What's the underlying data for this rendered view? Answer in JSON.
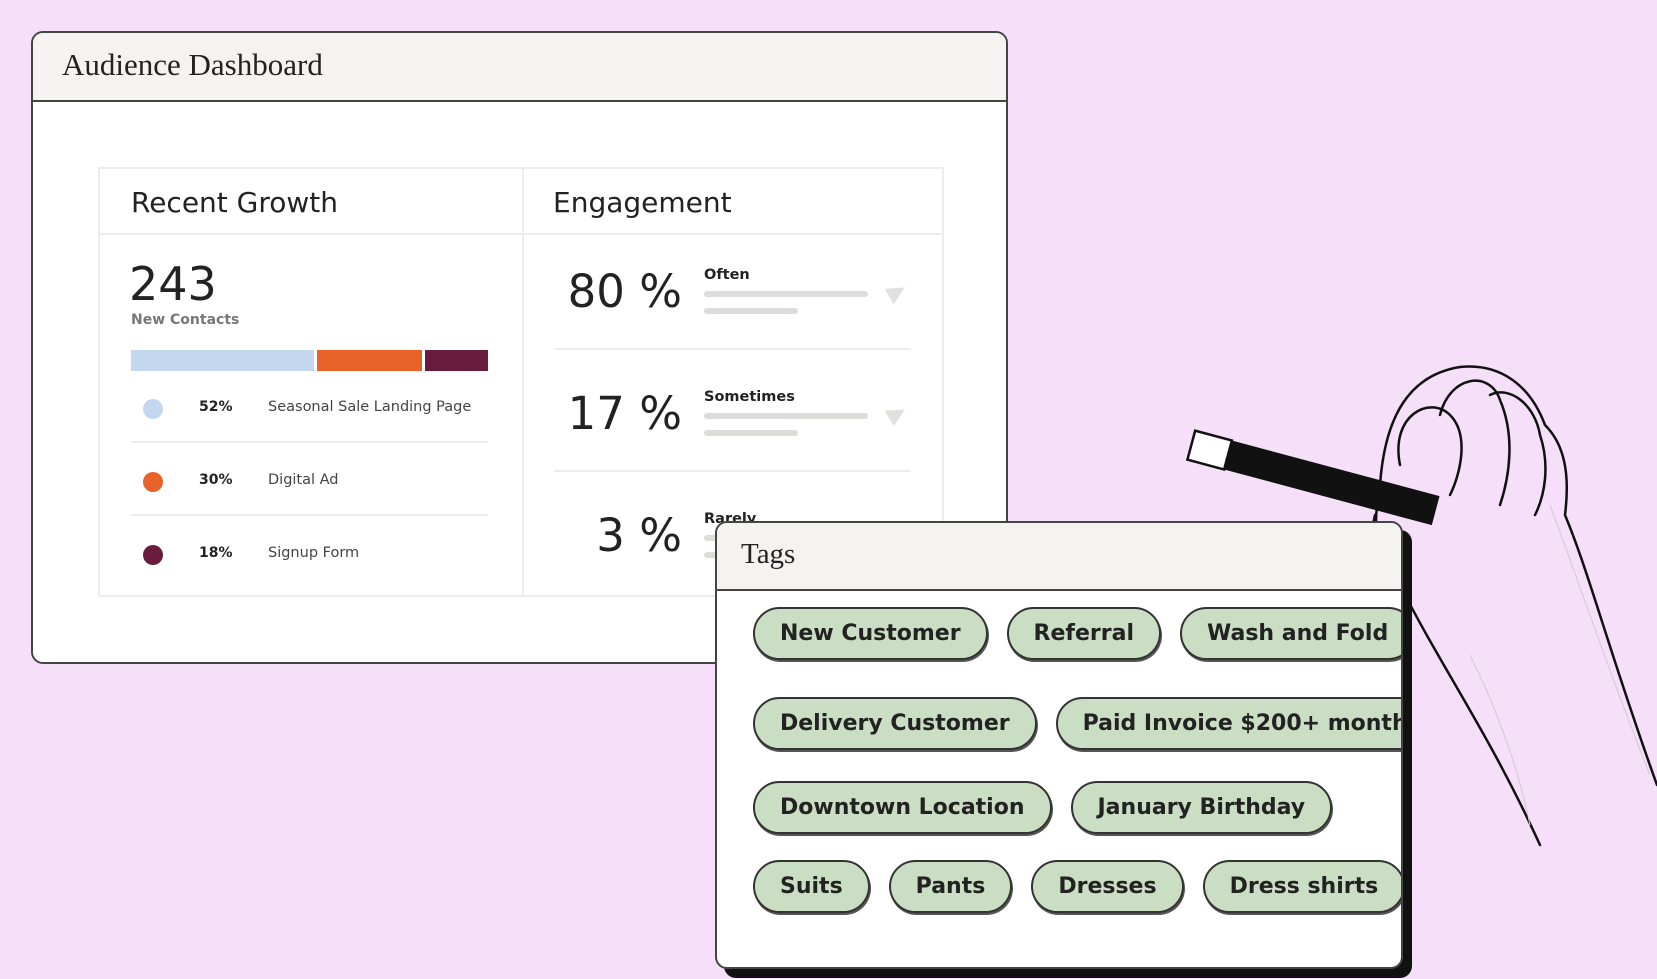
{
  "header": {
    "title": "Audience Dashboard"
  },
  "recent_growth": {
    "title": "Recent Growth",
    "total": "243",
    "total_label": "New Contacts",
    "sources": [
      {
        "value": 52,
        "label": "52%",
        "name": "Seasonal Sale Landing Page",
        "color": "#c3d7ee"
      },
      {
        "value": 30,
        "label": "30%",
        "name": "Digital Ad",
        "color": "#e8622a"
      },
      {
        "value": 18,
        "label": "18%",
        "name": "Signup Form",
        "color": "#6a1c3e"
      }
    ]
  },
  "engagement": {
    "title": "Engagement",
    "rows": [
      {
        "percent": "80 %",
        "name": "Often"
      },
      {
        "percent": "17 %",
        "name": "Sometimes"
      },
      {
        "percent": "3 %",
        "name": "Rarely"
      }
    ]
  },
  "tags": {
    "title": "Tags",
    "rows": [
      [
        "New Customer",
        "Referral",
        "Wash and Fold"
      ],
      [
        "Delivery Customer",
        "Paid Invoice $200+ month"
      ],
      [
        "Downtown Location",
        "January Birthday"
      ],
      [
        "Suits",
        "Pants",
        "Dresses",
        "Dress shirts"
      ]
    ]
  }
}
